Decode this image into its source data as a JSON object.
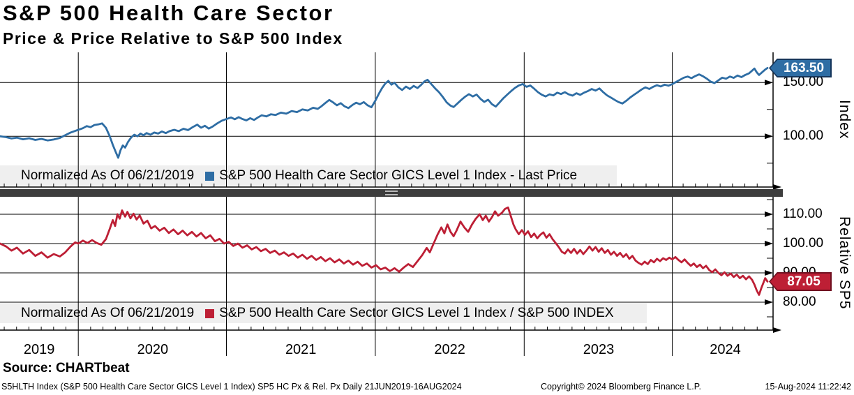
{
  "header": {
    "title": "S&P 500 Health Care Sector",
    "subtitle": "Price & Price Relative to S&P 500 Index"
  },
  "top_panel": {
    "legend_normalized": "Normalized As Of 06/21/2019",
    "legend_series": "S&P 500 Health Care Sector GICS Level 1 Index - Last Price",
    "last_price": "163.50",
    "axis_title": "Index",
    "yticks": [
      {
        "value": 150,
        "label": "150.00"
      },
      {
        "value": 100,
        "label": "100.00"
      }
    ],
    "minor_ticks": [
      125,
      75
    ]
  },
  "bottom_panel": {
    "legend_normalized": "Normalized As Of 06/21/2019",
    "legend_series": "S&P 500 Health Care Sector GICS Level 1 Index / S&P 500 INDEX",
    "last_price": "87.05",
    "axis_title": "Relative SP5",
    "yticks": [
      {
        "value": 110,
        "label": "110.00"
      },
      {
        "value": 100,
        "label": "100.00"
      },
      {
        "value": 90,
        "label": "90.00"
      },
      {
        "value": 80,
        "label": "80.00"
      }
    ],
    "minor_ticks": [
      115,
      105,
      95,
      85,
      75
    ]
  },
  "colors": {
    "blue_line": "#2e6da4",
    "blue_tag_border": "#15355a",
    "red_line": "#bd1f35",
    "red_tag_border": "#701020",
    "grid": "#000000",
    "legend_bg": "#efefef",
    "splitter": "#3d3d3d"
  },
  "footer": {
    "source": "Source: CHARTbeat",
    "description": "S5HLTH Index (S&P 500 Health Care Sector GICS Level 1 Index) SP5 HC Px & Rel. Px  Daily 21JUN2019-16AUG2024",
    "copyright": "Copyright© 2024 Bloomberg Finance L.P.",
    "datetime": "15-Aug-2024 11:22:42"
  },
  "chart_data": [
    {
      "type": "line",
      "panel": "top",
      "name": "S&P 500 Health Care Sector GICS Level 1 Index - Last Price",
      "normalized_as_of": "06/21/2019",
      "last_value": 163.5,
      "ylim_ticks": [
        100,
        150
      ],
      "x": [
        0.0,
        0.008,
        0.015,
        0.022,
        0.03,
        0.038,
        0.046,
        0.054,
        0.062,
        0.07,
        0.078,
        0.085,
        0.092,
        0.098,
        0.102,
        0.108,
        0.113,
        0.118,
        0.123,
        0.128,
        0.133,
        0.138,
        0.143,
        0.147,
        0.151,
        0.154,
        0.157,
        0.16,
        0.163,
        0.167,
        0.171,
        0.175,
        0.179,
        0.183,
        0.187,
        0.191,
        0.196,
        0.201,
        0.206,
        0.211,
        0.216,
        0.221,
        0.227,
        0.233,
        0.239,
        0.245,
        0.251,
        0.257,
        0.262,
        0.267,
        0.272,
        0.277,
        0.283,
        0.289,
        0.295,
        0.301,
        0.306,
        0.311,
        0.316,
        0.321,
        0.326,
        0.331,
        0.336,
        0.341,
        0.347,
        0.353,
        0.359,
        0.366,
        0.373,
        0.38,
        0.387,
        0.394,
        0.401,
        0.408,
        0.414,
        0.419,
        0.424,
        0.429,
        0.434,
        0.439,
        0.444,
        0.449,
        0.454,
        0.459,
        0.464,
        0.469,
        0.474,
        0.479,
        0.484,
        0.489,
        0.494,
        0.498,
        0.502,
        0.506,
        0.51,
        0.514,
        0.519,
        0.524,
        0.529,
        0.534,
        0.539,
        0.544,
        0.549,
        0.553,
        0.557,
        0.562,
        0.567,
        0.572,
        0.577,
        0.582,
        0.587,
        0.591,
        0.596,
        0.601,
        0.606,
        0.611,
        0.616,
        0.621,
        0.626,
        0.631,
        0.636,
        0.641,
        0.646,
        0.651,
        0.656,
        0.661,
        0.666,
        0.671,
        0.676,
        0.681,
        0.686,
        0.691,
        0.696,
        0.701,
        0.706,
        0.711,
        0.716,
        0.721,
        0.726,
        0.731,
        0.736,
        0.741,
        0.746,
        0.751,
        0.756,
        0.761,
        0.766,
        0.771,
        0.776,
        0.781,
        0.786,
        0.791,
        0.796,
        0.801,
        0.806,
        0.811,
        0.816,
        0.821,
        0.826,
        0.831,
        0.836,
        0.841,
        0.846,
        0.851,
        0.856,
        0.861,
        0.866,
        0.871,
        0.876,
        0.881,
        0.886,
        0.891,
        0.896,
        0.901,
        0.906,
        0.911,
        0.916,
        0.921,
        0.926,
        0.931,
        0.936,
        0.941,
        0.946,
        0.951,
        0.956,
        0.961,
        0.966,
        0.971,
        0.976,
        0.98,
        0.983,
        0.986,
        0.989,
        0.993,
        0.997,
        1.0
      ],
      "values": [
        100,
        99.2,
        98.0,
        98.8,
        97.2,
        98.2,
        96.6,
        97.6,
        96.2,
        97.0,
        98.5,
        101.0,
        103.5,
        105.0,
        106.0,
        107.5,
        109.5,
        108.5,
        110.5,
        111.0,
        112.0,
        108.0,
        100.0,
        92.0,
        85.0,
        80.0,
        87.0,
        91.5,
        89.5,
        95.0,
        99.0,
        101.5,
        100.0,
        102.5,
        101.0,
        103.0,
        101.5,
        103.5,
        102.5,
        104.5,
        103.0,
        104.8,
        106.0,
        104.8,
        107.0,
        105.8,
        108.5,
        110.8,
        108.0,
        109.8,
        107.2,
        109.0,
        112.0,
        114.5,
        116.0,
        117.5,
        115.8,
        117.8,
        116.0,
        114.8,
        116.8,
        115.2,
        117.5,
        119.5,
        118.5,
        120.5,
        119.8,
        122.0,
        121.0,
        123.5,
        122.5,
        125.0,
        124.0,
        126.5,
        125.5,
        128.0,
        131.0,
        133.8,
        131.5,
        128.8,
        130.8,
        127.8,
        126.2,
        129.0,
        131.2,
        129.8,
        131.8,
        128.8,
        127.0,
        133.0,
        140.0,
        145.0,
        149.0,
        151.5,
        148.0,
        149.8,
        145.5,
        143.0,
        146.2,
        144.0,
        146.8,
        144.8,
        148.0,
        151.0,
        152.5,
        148.5,
        144.5,
        141.0,
        136.5,
        131.5,
        128.5,
        127.2,
        130.5,
        133.8,
        136.8,
        139.2,
        137.0,
        138.8,
        134.8,
        132.0,
        134.0,
        129.8,
        127.6,
        131.5,
        135.5,
        138.8,
        142.0,
        145.0,
        147.2,
        148.6,
        146.0,
        147.2,
        144.2,
        141.0,
        138.6,
        137.0,
        139.0,
        138.0,
        140.5,
        139.3,
        141.0,
        139.0,
        137.8,
        140.0,
        138.5,
        140.5,
        142.0,
        144.0,
        142.5,
        144.5,
        141.0,
        138.0,
        136.0,
        133.8,
        131.8,
        130.5,
        133.0,
        136.0,
        138.5,
        141.0,
        143.5,
        145.5,
        144.0,
        146.0,
        147.5,
        146.3,
        148.0,
        147.0,
        148.5,
        150.5,
        152.5,
        154.5,
        155.5,
        154.0,
        156.0,
        157.5,
        155.8,
        153.5,
        150.8,
        149.5,
        152.0,
        154.5,
        153.5,
        155.5,
        154.3,
        156.5,
        155.0,
        157.0,
        158.5,
        161.0,
        163.0,
        159.5,
        157.0,
        159.5,
        162.0,
        163.5
      ]
    },
    {
      "type": "line",
      "panel": "bottom",
      "name": "S&P 500 Health Care Sector GICS Level 1 Index / S&P 500 INDEX",
      "normalized_as_of": "06/21/2019",
      "last_value": 87.05,
      "ylim_ticks": [
        80,
        110
      ],
      "x": [
        0.0,
        0.008,
        0.015,
        0.022,
        0.03,
        0.038,
        0.046,
        0.054,
        0.062,
        0.07,
        0.078,
        0.085,
        0.092,
        0.098,
        0.102,
        0.108,
        0.114,
        0.12,
        0.126,
        0.132,
        0.138,
        0.143,
        0.147,
        0.15,
        0.153,
        0.156,
        0.159,
        0.163,
        0.166,
        0.17,
        0.174,
        0.178,
        0.182,
        0.187,
        0.192,
        0.197,
        0.202,
        0.208,
        0.214,
        0.22,
        0.226,
        0.232,
        0.238,
        0.244,
        0.25,
        0.256,
        0.262,
        0.268,
        0.274,
        0.28,
        0.286,
        0.292,
        0.298,
        0.304,
        0.31,
        0.316,
        0.322,
        0.328,
        0.334,
        0.34,
        0.346,
        0.352,
        0.358,
        0.364,
        0.37,
        0.376,
        0.382,
        0.388,
        0.394,
        0.4,
        0.406,
        0.412,
        0.418,
        0.424,
        0.43,
        0.436,
        0.442,
        0.448,
        0.454,
        0.46,
        0.466,
        0.472,
        0.478,
        0.484,
        0.49,
        0.496,
        0.502,
        0.508,
        0.514,
        0.52,
        0.526,
        0.532,
        0.538,
        0.544,
        0.55,
        0.556,
        0.56,
        0.565,
        0.57,
        0.575,
        0.579,
        0.583,
        0.587,
        0.591,
        0.595,
        0.6,
        0.605,
        0.61,
        0.615,
        0.62,
        0.625,
        0.629,
        0.633,
        0.637,
        0.641,
        0.645,
        0.649,
        0.654,
        0.658,
        0.662,
        0.666,
        0.669,
        0.672,
        0.676,
        0.68,
        0.684,
        0.688,
        0.692,
        0.696,
        0.7,
        0.704,
        0.708,
        0.712,
        0.716,
        0.72,
        0.724,
        0.728,
        0.732,
        0.736,
        0.74,
        0.744,
        0.748,
        0.752,
        0.756,
        0.76,
        0.764,
        0.768,
        0.772,
        0.776,
        0.78,
        0.784,
        0.788,
        0.792,
        0.796,
        0.8,
        0.804,
        0.808,
        0.812,
        0.816,
        0.82,
        0.824,
        0.828,
        0.832,
        0.836,
        0.84,
        0.844,
        0.848,
        0.852,
        0.856,
        0.86,
        0.864,
        0.868,
        0.872,
        0.876,
        0.88,
        0.884,
        0.888,
        0.892,
        0.896,
        0.9,
        0.904,
        0.908,
        0.912,
        0.916,
        0.92,
        0.924,
        0.928,
        0.932,
        0.936,
        0.94,
        0.944,
        0.948,
        0.952,
        0.956,
        0.96,
        0.964,
        0.968,
        0.972,
        0.976,
        0.98,
        0.983,
        0.986,
        0.989,
        0.992,
        0.995,
        0.997,
        1.0
      ],
      "values": [
        100.0,
        99.0,
        97.6,
        98.6,
        96.6,
        97.8,
        95.8,
        97.0,
        95.2,
        96.4,
        95.6,
        97.0,
        99.0,
        100.4,
        100.0,
        101.0,
        100.2,
        101.2,
        100.2,
        99.6,
        101.5,
        105.0,
        108.0,
        106.0,
        110.0,
        108.5,
        111.3,
        109.2,
        110.8,
        108.6,
        110.2,
        108.2,
        109.6,
        106.8,
        107.8,
        105.2,
        106.0,
        104.4,
        105.4,
        103.6,
        104.8,
        103.2,
        104.4,
        102.8,
        104.0,
        102.4,
        103.6,
        101.8,
        102.8,
        100.8,
        101.6,
        100.0,
        100.6,
        99.2,
        100.0,
        98.6,
        99.4,
        98.0,
        98.8,
        97.4,
        98.2,
        96.8,
        97.6,
        96.2,
        97.0,
        95.8,
        96.6,
        95.2,
        96.2,
        94.8,
        95.8,
        94.4,
        95.4,
        94.0,
        95.0,
        93.6,
        94.6,
        93.2,
        94.2,
        92.8,
        93.8,
        92.4,
        93.2,
        91.8,
        92.6,
        91.2,
        91.8,
        90.6,
        91.6,
        90.4,
        91.8,
        93.0,
        92.0,
        94.0,
        96.0,
        98.5,
        97.0,
        100.0,
        103.0,
        105.5,
        103.5,
        106.5,
        104.0,
        102.5,
        104.5,
        107.5,
        105.5,
        104.0,
        106.5,
        108.5,
        110.0,
        108.0,
        109.5,
        107.5,
        109.0,
        111.0,
        109.5,
        110.5,
        111.8,
        112.3,
        109.0,
        106.5,
        104.8,
        103.2,
        104.6,
        103.0,
        104.2,
        102.2,
        103.4,
        101.8,
        103.0,
        103.8,
        102.0,
        103.2,
        101.5,
        100.2,
        98.8,
        97.2,
        96.6,
        98.0,
        96.8,
        98.2,
        96.6,
        97.8,
        96.4,
        97.6,
        99.0,
        97.6,
        98.8,
        97.2,
        98.4,
        96.8,
        97.8,
        96.2,
        97.2,
        95.8,
        96.8,
        95.4,
        96.4,
        94.8,
        95.8,
        94.2,
        93.4,
        92.8,
        93.8,
        93.0,
        94.4,
        93.6,
        94.8,
        94.0,
        95.0,
        94.4,
        95.2,
        94.6,
        95.4,
        94.4,
        93.6,
        94.6,
        93.4,
        92.4,
        93.2,
        92.0,
        92.8,
        91.6,
        92.4,
        91.0,
        90.2,
        91.2,
        90.0,
        89.2,
        90.2,
        89.0,
        89.8,
        88.6,
        89.4,
        88.2,
        89.0,
        87.8,
        88.8,
        87.6,
        86.0,
        84.0,
        82.5,
        84.8,
        86.8,
        88.2,
        87.05
      ]
    }
  ],
  "x_axis": {
    "years": [
      {
        "label": "2019",
        "center": 0.051
      },
      {
        "label": "2020",
        "center": 0.199
      },
      {
        "label": "2021",
        "center": 0.392
      },
      {
        "label": "2022",
        "center": 0.586
      },
      {
        "label": "2023",
        "center": 0.78
      },
      {
        "label": "2024",
        "center": 0.945
      }
    ],
    "year_boundaries": [
      0.102,
      0.295,
      0.489,
      0.683,
      0.876
    ],
    "range": "21JUN2019-16AUG2024"
  }
}
